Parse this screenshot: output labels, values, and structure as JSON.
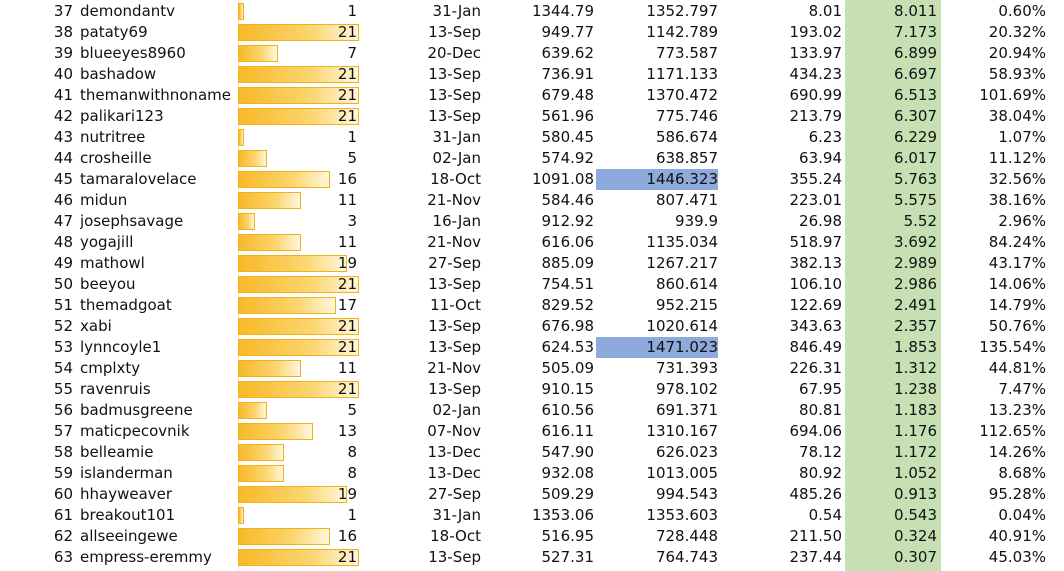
{
  "max_count": 21,
  "colors": {
    "highlight_blue": "#8ea9db",
    "green_column": "#c6e0b4",
    "bar_gold": "#f7b928"
  },
  "rows": [
    {
      "rank": "37",
      "user": "demondantv",
      "count": 1,
      "date": "31-Jan",
      "v1": "1344.79",
      "v2": "1352.797",
      "v3": "8.01",
      "v4": "8.011",
      "pct": "0.60%",
      "hl": false
    },
    {
      "rank": "38",
      "user": "pataty69",
      "count": 21,
      "date": "13-Sep",
      "v1": "949.77",
      "v2": "1142.789",
      "v3": "193.02",
      "v4": "7.173",
      "pct": "20.32%",
      "hl": false
    },
    {
      "rank": "39",
      "user": "blueeyes8960",
      "count": 7,
      "date": "20-Dec",
      "v1": "639.62",
      "v2": "773.587",
      "v3": "133.97",
      "v4": "6.899",
      "pct": "20.94%",
      "hl": false
    },
    {
      "rank": "40",
      "user": "bashadow",
      "count": 21,
      "date": "13-Sep",
      "v1": "736.91",
      "v2": "1171.133",
      "v3": "434.23",
      "v4": "6.697",
      "pct": "58.93%",
      "hl": false
    },
    {
      "rank": "41",
      "user": "themanwithnoname",
      "count": 21,
      "date": "13-Sep",
      "v1": "679.48",
      "v2": "1370.472",
      "v3": "690.99",
      "v4": "6.513",
      "pct": "101.69%",
      "hl": false
    },
    {
      "rank": "42",
      "user": "palikari123",
      "count": 21,
      "date": "13-Sep",
      "v1": "561.96",
      "v2": "775.746",
      "v3": "213.79",
      "v4": "6.307",
      "pct": "38.04%",
      "hl": false
    },
    {
      "rank": "43",
      "user": "nutritree",
      "count": 1,
      "date": "31-Jan",
      "v1": "580.45",
      "v2": "586.674",
      "v3": "6.23",
      "v4": "6.229",
      "pct": "1.07%",
      "hl": false
    },
    {
      "rank": "44",
      "user": "crosheille",
      "count": 5,
      "date": "02-Jan",
      "v1": "574.92",
      "v2": "638.857",
      "v3": "63.94",
      "v4": "6.017",
      "pct": "11.12%",
      "hl": false
    },
    {
      "rank": "45",
      "user": "tamaralovelace",
      "count": 16,
      "date": "18-Oct",
      "v1": "1091.08",
      "v2": "1446.323",
      "v3": "355.24",
      "v4": "5.763",
      "pct": "32.56%",
      "hl": true
    },
    {
      "rank": "46",
      "user": "midun",
      "count": 11,
      "date": "21-Nov",
      "v1": "584.46",
      "v2": "807.471",
      "v3": "223.01",
      "v4": "5.575",
      "pct": "38.16%",
      "hl": false
    },
    {
      "rank": "47",
      "user": "josephsavage",
      "count": 3,
      "date": "16-Jan",
      "v1": "912.92",
      "v2": "939.9",
      "v3": "26.98",
      "v4": "5.52",
      "pct": "2.96%",
      "hl": false
    },
    {
      "rank": "48",
      "user": "yogajill",
      "count": 11,
      "date": "21-Nov",
      "v1": "616.06",
      "v2": "1135.034",
      "v3": "518.97",
      "v4": "3.692",
      "pct": "84.24%",
      "hl": false
    },
    {
      "rank": "49",
      "user": "mathowl",
      "count": 19,
      "date": "27-Sep",
      "v1": "885.09",
      "v2": "1267.217",
      "v3": "382.13",
      "v4": "2.989",
      "pct": "43.17%",
      "hl": false
    },
    {
      "rank": "50",
      "user": "beeyou",
      "count": 21,
      "date": "13-Sep",
      "v1": "754.51",
      "v2": "860.614",
      "v3": "106.10",
      "v4": "2.986",
      "pct": "14.06%",
      "hl": false
    },
    {
      "rank": "51",
      "user": "themadgoat",
      "count": 17,
      "date": "11-Oct",
      "v1": "829.52",
      "v2": "952.215",
      "v3": "122.69",
      "v4": "2.491",
      "pct": "14.79%",
      "hl": false
    },
    {
      "rank": "52",
      "user": "xabi",
      "count": 21,
      "date": "13-Sep",
      "v1": "676.98",
      "v2": "1020.614",
      "v3": "343.63",
      "v4": "2.357",
      "pct": "50.76%",
      "hl": false
    },
    {
      "rank": "53",
      "user": "lynncoyle1",
      "count": 21,
      "date": "13-Sep",
      "v1": "624.53",
      "v2": "1471.023",
      "v3": "846.49",
      "v4": "1.853",
      "pct": "135.54%",
      "hl": true
    },
    {
      "rank": "54",
      "user": "cmplxty",
      "count": 11,
      "date": "21-Nov",
      "v1": "505.09",
      "v2": "731.393",
      "v3": "226.31",
      "v4": "1.312",
      "pct": "44.81%",
      "hl": false
    },
    {
      "rank": "55",
      "user": "ravenruis",
      "count": 21,
      "date": "13-Sep",
      "v1": "910.15",
      "v2": "978.102",
      "v3": "67.95",
      "v4": "1.238",
      "pct": "7.47%",
      "hl": false
    },
    {
      "rank": "56",
      "user": "badmusgreene",
      "count": 5,
      "date": "02-Jan",
      "v1": "610.56",
      "v2": "691.371",
      "v3": "80.81",
      "v4": "1.183",
      "pct": "13.23%",
      "hl": false
    },
    {
      "rank": "57",
      "user": "maticpecovnik",
      "count": 13,
      "date": "07-Nov",
      "v1": "616.11",
      "v2": "1310.167",
      "v3": "694.06",
      "v4": "1.176",
      "pct": "112.65%",
      "hl": false
    },
    {
      "rank": "58",
      "user": "belleamie",
      "count": 8,
      "date": "13-Dec",
      "v1": "547.90",
      "v2": "626.023",
      "v3": "78.12",
      "v4": "1.172",
      "pct": "14.26%",
      "hl": false
    },
    {
      "rank": "59",
      "user": "islanderman",
      "count": 8,
      "date": "13-Dec",
      "v1": "932.08",
      "v2": "1013.005",
      "v3": "80.92",
      "v4": "1.052",
      "pct": "8.68%",
      "hl": false
    },
    {
      "rank": "60",
      "user": "hhayweaver",
      "count": 19,
      "date": "27-Sep",
      "v1": "509.29",
      "v2": "994.543",
      "v3": "485.26",
      "v4": "0.913",
      "pct": "95.28%",
      "hl": false
    },
    {
      "rank": "61",
      "user": "breakout101",
      "count": 1,
      "date": "31-Jan",
      "v1": "1353.06",
      "v2": "1353.603",
      "v3": "0.54",
      "v4": "0.543",
      "pct": "0.04%",
      "hl": false
    },
    {
      "rank": "62",
      "user": "allseeingewe",
      "count": 16,
      "date": "18-Oct",
      "v1": "516.95",
      "v2": "728.448",
      "v3": "211.50",
      "v4": "0.324",
      "pct": "40.91%",
      "hl": false
    },
    {
      "rank": "63",
      "user": "empress-eremmy",
      "count": 21,
      "date": "13-Sep",
      "v1": "527.31",
      "v2": "764.743",
      "v3": "237.44",
      "v4": "0.307",
      "pct": "45.03%",
      "hl": false
    }
  ]
}
